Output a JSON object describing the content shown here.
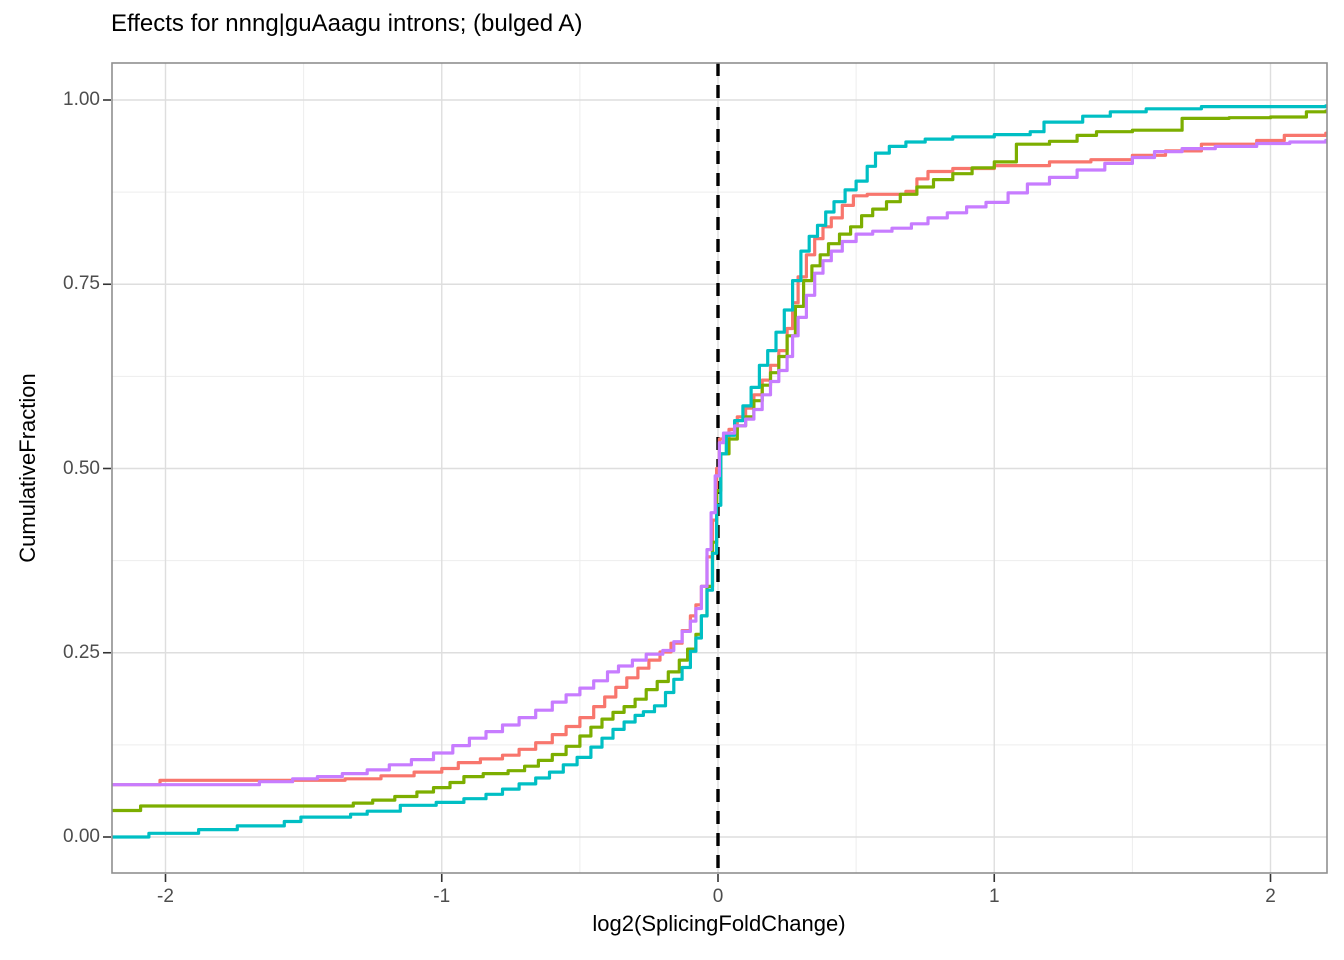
{
  "chart_data": {
    "type": "line",
    "subtype": "ecdf-step",
    "title": "Effects for nnng|guAaagu introns; (bulged A)",
    "xlabel": "log2(SplicingFoldChange)",
    "ylabel": "CumulativeFraction",
    "xlim": [
      -2.2,
      2.2
    ],
    "ylim": [
      -0.05,
      1.05
    ],
    "x_ticks": [
      -2,
      -1,
      0,
      1,
      2
    ],
    "x_tick_labels": [
      "-2",
      "-1",
      "0",
      "1",
      "2"
    ],
    "x_minor_ticks": [
      -1.5,
      -0.5,
      0.5,
      1.5
    ],
    "y_ticks": [
      0,
      0.25,
      0.5,
      0.75,
      1
    ],
    "y_tick_labels": [
      "0.00",
      "0.25",
      "0.50",
      "0.75",
      "1.00"
    ],
    "y_minor_ticks": [
      0.125,
      0.375,
      0.625,
      0.875
    ],
    "grid": true,
    "legend": "none",
    "vline": {
      "x": 0,
      "style": "dashed",
      "color": "#000000"
    },
    "style": {
      "background": "#FFFFFF",
      "grid_major": "#DEDEDE",
      "grid_minor": "#EDEDED",
      "panel_border": "#8F8F8F",
      "tick_color": "#333333",
      "tick_label_color": "#4D4D4D"
    },
    "series": [
      {
        "name": "salmon",
        "color": "#F8766D",
        "points": [
          [
            -2.2,
            0.071
          ],
          [
            -2.02,
            0.077
          ],
          [
            -1.35,
            0.079
          ],
          [
            -1.22,
            0.083
          ],
          [
            -1.1,
            0.088
          ],
          [
            -1.0,
            0.093
          ],
          [
            -0.94,
            0.101
          ],
          [
            -0.86,
            0.106
          ],
          [
            -0.78,
            0.111
          ],
          [
            -0.72,
            0.119
          ],
          [
            -0.66,
            0.128
          ],
          [
            -0.6,
            0.139
          ],
          [
            -0.55,
            0.15
          ],
          [
            -0.5,
            0.162
          ],
          [
            -0.45,
            0.177
          ],
          [
            -0.41,
            0.19
          ],
          [
            -0.37,
            0.203
          ],
          [
            -0.33,
            0.216
          ],
          [
            -0.29,
            0.229
          ],
          [
            -0.25,
            0.24
          ],
          [
            -0.21,
            0.251
          ],
          [
            -0.17,
            0.263
          ],
          [
            -0.13,
            0.28
          ],
          [
            -0.1,
            0.3
          ],
          [
            -0.08,
            0.315
          ],
          [
            -0.06,
            0.34
          ],
          [
            -0.04,
            0.38
          ],
          [
            -0.02,
            0.43
          ],
          [
            -0.005,
            0.5
          ],
          [
            0.005,
            0.54
          ],
          [
            0.04,
            0.553
          ],
          [
            0.07,
            0.57
          ],
          [
            0.1,
            0.582
          ],
          [
            0.13,
            0.6
          ],
          [
            0.16,
            0.62
          ],
          [
            0.19,
            0.64
          ],
          [
            0.22,
            0.66
          ],
          [
            0.25,
            0.69
          ],
          [
            0.27,
            0.725
          ],
          [
            0.29,
            0.76
          ],
          [
            0.32,
            0.79
          ],
          [
            0.35,
            0.812
          ],
          [
            0.38,
            0.828
          ],
          [
            0.41,
            0.84
          ],
          [
            0.45,
            0.857
          ],
          [
            0.49,
            0.87
          ],
          [
            0.54,
            0.872
          ],
          [
            0.68,
            0.876
          ],
          [
            0.72,
            0.893
          ],
          [
            0.76,
            0.903
          ],
          [
            0.85,
            0.907
          ],
          [
            1.0,
            0.911
          ],
          [
            1.2,
            0.916
          ],
          [
            1.35,
            0.919
          ],
          [
            1.5,
            0.925
          ],
          [
            1.62,
            0.931
          ],
          [
            1.75,
            0.94
          ],
          [
            1.95,
            0.945
          ],
          [
            2.05,
            0.952
          ],
          [
            2.2,
            0.955
          ]
        ]
      },
      {
        "name": "green",
        "color": "#7CAE00",
        "points": [
          [
            -2.2,
            0.036
          ],
          [
            -2.09,
            0.042
          ],
          [
            -1.32,
            0.046
          ],
          [
            -1.25,
            0.05
          ],
          [
            -1.17,
            0.055
          ],
          [
            -1.09,
            0.061
          ],
          [
            -1.03,
            0.067
          ],
          [
            -0.97,
            0.074
          ],
          [
            -0.92,
            0.082
          ],
          [
            -0.85,
            0.086
          ],
          [
            -0.76,
            0.09
          ],
          [
            -0.7,
            0.096
          ],
          [
            -0.65,
            0.104
          ],
          [
            -0.6,
            0.112
          ],
          [
            -0.55,
            0.123
          ],
          [
            -0.5,
            0.137
          ],
          [
            -0.46,
            0.149
          ],
          [
            -0.42,
            0.16
          ],
          [
            -0.38,
            0.169
          ],
          [
            -0.34,
            0.177
          ],
          [
            -0.3,
            0.187
          ],
          [
            -0.26,
            0.2
          ],
          [
            -0.22,
            0.211
          ],
          [
            -0.18,
            0.224
          ],
          [
            -0.14,
            0.24
          ],
          [
            -0.11,
            0.255
          ],
          [
            -0.08,
            0.275
          ],
          [
            -0.06,
            0.3
          ],
          [
            -0.04,
            0.34
          ],
          [
            -0.02,
            0.4
          ],
          [
            -0.005,
            0.47
          ],
          [
            0.01,
            0.52
          ],
          [
            0.04,
            0.54
          ],
          [
            0.07,
            0.558
          ],
          [
            0.1,
            0.57
          ],
          [
            0.13,
            0.592
          ],
          [
            0.16,
            0.613
          ],
          [
            0.19,
            0.63
          ],
          [
            0.22,
            0.652
          ],
          [
            0.25,
            0.68
          ],
          [
            0.28,
            0.72
          ],
          [
            0.31,
            0.755
          ],
          [
            0.34,
            0.775
          ],
          [
            0.37,
            0.79
          ],
          [
            0.4,
            0.805
          ],
          [
            0.44,
            0.818
          ],
          [
            0.48,
            0.828
          ],
          [
            0.52,
            0.843
          ],
          [
            0.56,
            0.852
          ],
          [
            0.61,
            0.862
          ],
          [
            0.66,
            0.872
          ],
          [
            0.72,
            0.882
          ],
          [
            0.78,
            0.892
          ],
          [
            0.85,
            0.9
          ],
          [
            0.92,
            0.908
          ],
          [
            1.0,
            0.916
          ],
          [
            1.08,
            0.94
          ],
          [
            1.2,
            0.944
          ],
          [
            1.3,
            0.952
          ],
          [
            1.37,
            0.957
          ],
          [
            1.5,
            0.959
          ],
          [
            1.68,
            0.975
          ],
          [
            1.85,
            0.976
          ],
          [
            2.0,
            0.977
          ],
          [
            2.13,
            0.984
          ],
          [
            2.2,
            0.985
          ]
        ]
      },
      {
        "name": "teal",
        "color": "#00BFC4",
        "points": [
          [
            -2.2,
            0.0
          ],
          [
            -2.06,
            0.005
          ],
          [
            -1.88,
            0.01
          ],
          [
            -1.74,
            0.015
          ],
          [
            -1.57,
            0.021
          ],
          [
            -1.51,
            0.027
          ],
          [
            -1.33,
            0.031
          ],
          [
            -1.27,
            0.035
          ],
          [
            -1.15,
            0.043
          ],
          [
            -1.02,
            0.047
          ],
          [
            -0.92,
            0.052
          ],
          [
            -0.84,
            0.058
          ],
          [
            -0.78,
            0.065
          ],
          [
            -0.72,
            0.072
          ],
          [
            -0.66,
            0.08
          ],
          [
            -0.61,
            0.088
          ],
          [
            -0.56,
            0.098
          ],
          [
            -0.51,
            0.108
          ],
          [
            -0.46,
            0.122
          ],
          [
            -0.42,
            0.134
          ],
          [
            -0.38,
            0.146
          ],
          [
            -0.34,
            0.156
          ],
          [
            -0.3,
            0.165
          ],
          [
            -0.27,
            0.17
          ],
          [
            -0.23,
            0.178
          ],
          [
            -0.19,
            0.196
          ],
          [
            -0.16,
            0.214
          ],
          [
            -0.13,
            0.23
          ],
          [
            -0.1,
            0.252
          ],
          [
            -0.08,
            0.27
          ],
          [
            -0.06,
            0.3
          ],
          [
            -0.04,
            0.335
          ],
          [
            -0.02,
            0.385
          ],
          [
            -0.005,
            0.45
          ],
          [
            0.01,
            0.52
          ],
          [
            0.03,
            0.545
          ],
          [
            0.06,
            0.565
          ],
          [
            0.09,
            0.585
          ],
          [
            0.12,
            0.61
          ],
          [
            0.15,
            0.64
          ],
          [
            0.18,
            0.66
          ],
          [
            0.21,
            0.685
          ],
          [
            0.24,
            0.715
          ],
          [
            0.27,
            0.755
          ],
          [
            0.3,
            0.795
          ],
          [
            0.33,
            0.815
          ],
          [
            0.36,
            0.83
          ],
          [
            0.39,
            0.848
          ],
          [
            0.42,
            0.862
          ],
          [
            0.46,
            0.878
          ],
          [
            0.5,
            0.89
          ],
          [
            0.54,
            0.91
          ],
          [
            0.57,
            0.928
          ],
          [
            0.62,
            0.937
          ],
          [
            0.68,
            0.943
          ],
          [
            0.75,
            0.947
          ],
          [
            0.85,
            0.95
          ],
          [
            1.0,
            0.953
          ],
          [
            1.13,
            0.957
          ],
          [
            1.18,
            0.97
          ],
          [
            1.32,
            0.978
          ],
          [
            1.42,
            0.984
          ],
          [
            1.55,
            0.988
          ],
          [
            1.75,
            0.991
          ],
          [
            2.2,
            0.992
          ]
        ]
      },
      {
        "name": "purple",
        "color": "#C77CFF",
        "points": [
          [
            -2.2,
            0.071
          ],
          [
            -1.66,
            0.075
          ],
          [
            -1.54,
            0.079
          ],
          [
            -1.45,
            0.082
          ],
          [
            -1.36,
            0.086
          ],
          [
            -1.27,
            0.091
          ],
          [
            -1.19,
            0.098
          ],
          [
            -1.11,
            0.105
          ],
          [
            -1.03,
            0.114
          ],
          [
            -0.96,
            0.124
          ],
          [
            -0.9,
            0.134
          ],
          [
            -0.84,
            0.143
          ],
          [
            -0.78,
            0.152
          ],
          [
            -0.72,
            0.162
          ],
          [
            -0.66,
            0.172
          ],
          [
            -0.6,
            0.183
          ],
          [
            -0.55,
            0.193
          ],
          [
            -0.5,
            0.202
          ],
          [
            -0.45,
            0.212
          ],
          [
            -0.4,
            0.224
          ],
          [
            -0.36,
            0.232
          ],
          [
            -0.31,
            0.24
          ],
          [
            -0.26,
            0.248
          ],
          [
            -0.2,
            0.253
          ],
          [
            -0.16,
            0.265
          ],
          [
            -0.13,
            0.279
          ],
          [
            -0.1,
            0.293
          ],
          [
            -0.08,
            0.31
          ],
          [
            -0.06,
            0.34
          ],
          [
            -0.04,
            0.39
          ],
          [
            -0.025,
            0.44
          ],
          [
            -0.01,
            0.49
          ],
          [
            0.005,
            0.535
          ],
          [
            0.02,
            0.548
          ],
          [
            0.06,
            0.558
          ],
          [
            0.1,
            0.567
          ],
          [
            0.13,
            0.58
          ],
          [
            0.16,
            0.6
          ],
          [
            0.19,
            0.618
          ],
          [
            0.22,
            0.633
          ],
          [
            0.25,
            0.652
          ],
          [
            0.27,
            0.68
          ],
          [
            0.29,
            0.705
          ],
          [
            0.32,
            0.735
          ],
          [
            0.35,
            0.765
          ],
          [
            0.38,
            0.782
          ],
          [
            0.41,
            0.795
          ],
          [
            0.45,
            0.808
          ],
          [
            0.5,
            0.818
          ],
          [
            0.56,
            0.822
          ],
          [
            0.63,
            0.826
          ],
          [
            0.7,
            0.832
          ],
          [
            0.76,
            0.84
          ],
          [
            0.83,
            0.847
          ],
          [
            0.9,
            0.855
          ],
          [
            0.97,
            0.861
          ],
          [
            1.05,
            0.874
          ],
          [
            1.12,
            0.886
          ],
          [
            1.2,
            0.895
          ],
          [
            1.3,
            0.905
          ],
          [
            1.4,
            0.914
          ],
          [
            1.5,
            0.922
          ],
          [
            1.58,
            0.93
          ],
          [
            1.68,
            0.934
          ],
          [
            1.8,
            0.937
          ],
          [
            1.95,
            0.941
          ],
          [
            2.07,
            0.943
          ],
          [
            2.2,
            0.945
          ]
        ]
      }
    ]
  }
}
